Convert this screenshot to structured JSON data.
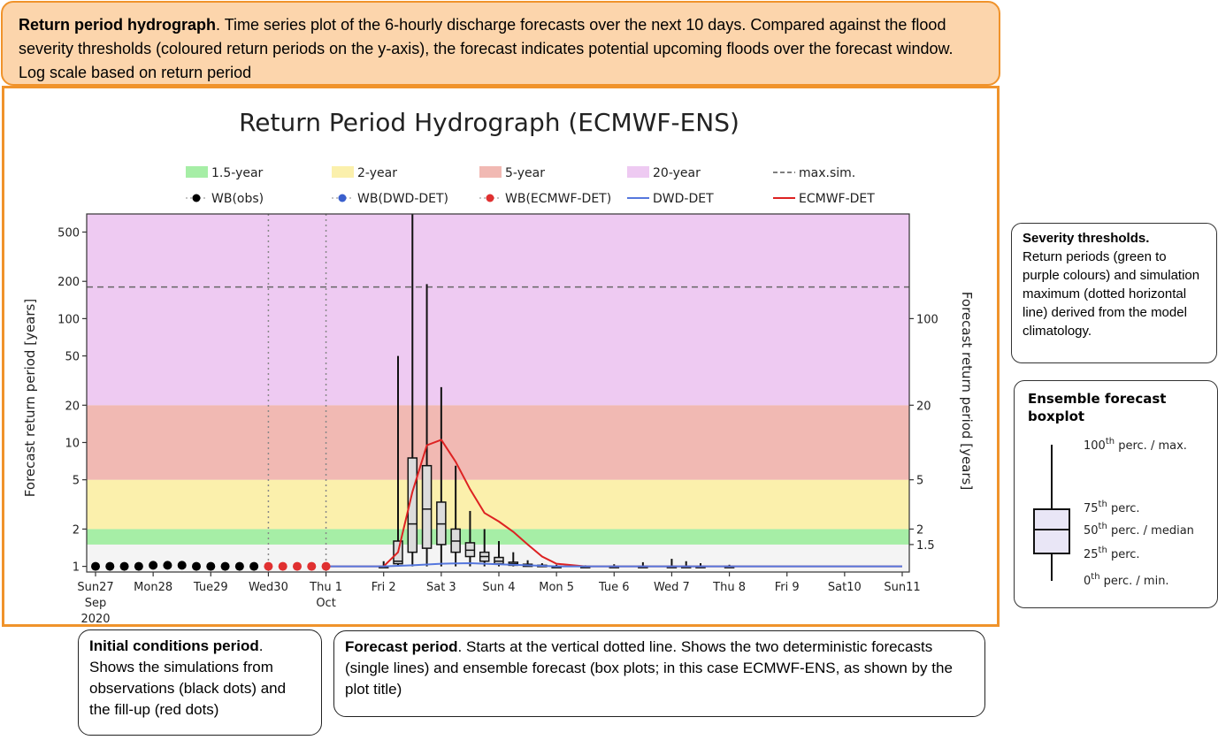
{
  "header": {
    "title": "Return period hydrograph",
    "text": ". Time series plot of the 6-hourly discharge forecasts over the next 10 days. Compared against the flood severity thresholds (coloured return periods on the y-axis), the forecast indicates potential upcoming floods over the forecast window. Log scale based on return period"
  },
  "severity_box": {
    "title": "Severity thresholds.",
    "text": "Return periods (green to purple colours) and simulation maximum (dotted horizontal line) derived from the model climatology."
  },
  "ensemble_box": {
    "title_line1": "Ensemble forecast",
    "title_line2": "boxplot",
    "labels": [
      {
        "sup": "100",
        "pre": "",
        "post": " perc. / max."
      },
      {
        "sup": "75",
        "pre": "",
        "post": " perc."
      },
      {
        "sup": "50",
        "pre": "",
        "post": " perc. / median"
      },
      {
        "sup": "25",
        "pre": "",
        "post": " perc."
      },
      {
        "sup": "0",
        "pre": "",
        "post": " perc. / min."
      }
    ],
    "ordinal": "th"
  },
  "initial_box": {
    "title": "Initial conditions period",
    "text": ". Shows the simulations from observations (black dots) and the fill-up (red dots)"
  },
  "forecast_box": {
    "title": "Forecast period",
    "text": ". Starts at the vertical dotted line. Shows the two deterministic forecasts (single lines) and ensemble forecast (box plots; in this case ECMWF-ENS, as shown by the plot title)"
  },
  "chart_data": {
    "type": "line",
    "title": "Return Period Hydrograph (ECMWF-ENS)",
    "ylabel_left": "Forecast return period [years]",
    "ylabel_right": "Forecast return period [years]",
    "y_scale": "log",
    "ylim": [
      0.9,
      700
    ],
    "y_ticks_left": [
      "1",
      "2",
      "5",
      "10",
      "20",
      "50",
      "100",
      "200",
      "500"
    ],
    "y_ticks_right": [
      "1.5",
      "2",
      "5",
      "20",
      "100"
    ],
    "xlim": [
      0,
      14
    ],
    "x_ticks": [
      {
        "x": 0,
        "lines": [
          "Sun27",
          "Sep",
          "2020"
        ]
      },
      {
        "x": 1,
        "lines": [
          "Mon28"
        ]
      },
      {
        "x": 2,
        "lines": [
          "Tue29"
        ]
      },
      {
        "x": 3,
        "lines": [
          "Wed30"
        ]
      },
      {
        "x": 4,
        "lines": [
          "Thu 1",
          "Oct"
        ]
      },
      {
        "x": 5,
        "lines": [
          "Fri 2"
        ]
      },
      {
        "x": 6,
        "lines": [
          "Sat 3"
        ]
      },
      {
        "x": 7,
        "lines": [
          "Sun 4"
        ]
      },
      {
        "x": 8,
        "lines": [
          "Mon 5"
        ]
      },
      {
        "x": 9,
        "lines": [
          "Tue 6"
        ]
      },
      {
        "x": 10,
        "lines": [
          "Wed 7"
        ]
      },
      {
        "x": 11,
        "lines": [
          "Thu 8"
        ]
      },
      {
        "x": 12,
        "lines": [
          "Fri 9"
        ]
      },
      {
        "x": 13,
        "lines": [
          "Sat10"
        ]
      },
      {
        "x": 14,
        "lines": [
          "Sun11"
        ]
      }
    ],
    "bands": [
      {
        "name": "1.5-year",
        "from": 1.5,
        "to": 2,
        "color": "#a6eea6"
      },
      {
        "name": "2-year",
        "from": 2,
        "to": 5,
        "color": "#fbf0ac"
      },
      {
        "name": "5-year",
        "from": 5,
        "to": 20,
        "color": "#f1b9b3"
      },
      {
        "name": "20-year",
        "from": 20,
        "to": 700,
        "color": "#eecaf2"
      }
    ],
    "max_sim": 180,
    "vlines": [
      3,
      4
    ],
    "legend": [
      {
        "label": "1.5-year",
        "kind": "patch",
        "color": "#a6eea6"
      },
      {
        "label": "2-year",
        "kind": "patch",
        "color": "#fbf0ac"
      },
      {
        "label": "5-year",
        "kind": "patch",
        "color": "#f1b9b3"
      },
      {
        "label": "20-year",
        "kind": "patch",
        "color": "#eecaf2"
      },
      {
        "label": "max.sim.",
        "kind": "dash",
        "color": "#555555"
      },
      {
        "label": "WB(obs)",
        "kind": "dot",
        "color": "#000000"
      },
      {
        "label": "WB(DWD-DET)",
        "kind": "dot",
        "color": "#3a5fcd"
      },
      {
        "label": "WB(ECMWF-DET)",
        "kind": "dot",
        "color": "#e03030"
      },
      {
        "label": "DWD-DET",
        "kind": "line",
        "color": "#5577dd"
      },
      {
        "label": "ECMWF-DET",
        "kind": "line",
        "color": "#dd2222"
      }
    ],
    "series": [
      {
        "name": "WB(obs)",
        "kind": "dots",
        "color": "#000000",
        "x": [
          0,
          0.25,
          0.5,
          0.75,
          1,
          1.25,
          1.5,
          1.75,
          2,
          2.25,
          2.5,
          2.75
        ],
        "y": [
          1.0,
          1.0,
          1.0,
          1.0,
          1.02,
          1.02,
          1.02,
          1.0,
          1.0,
          1.0,
          1.0,
          1.0
        ]
      },
      {
        "name": "WB(ECMWF-DET)",
        "kind": "dots",
        "color": "#e03030",
        "x": [
          3,
          3.25,
          3.5,
          3.75,
          4
        ],
        "y": [
          1.0,
          1.0,
          1.0,
          1.0,
          1.0
        ]
      },
      {
        "name": "ECMWF-DET",
        "kind": "line",
        "color": "#dd2222",
        "x": [
          4,
          5,
          5.25,
          5.5,
          5.75,
          6,
          6.25,
          6.5,
          6.75,
          7,
          7.25,
          7.5,
          7.75,
          8,
          8.5,
          9,
          10,
          11,
          12,
          13,
          14
        ],
        "y": [
          1.0,
          1.0,
          1.3,
          4,
          9.5,
          10.5,
          7,
          4.2,
          2.7,
          2.3,
          1.9,
          1.5,
          1.2,
          1.05,
          1.0,
          1.0,
          1.0,
          1.0,
          1.0,
          1.0,
          1.0
        ]
      },
      {
        "name": "DWD-DET",
        "kind": "line",
        "color": "#5577dd",
        "x": [
          4,
          5,
          5.5,
          6,
          6.5,
          7,
          7.5,
          8,
          9,
          14
        ],
        "y": [
          1.0,
          1.0,
          1.02,
          1.05,
          1.06,
          1.04,
          1.02,
          1.0,
          1.0,
          1.0
        ]
      }
    ],
    "boxplots": [
      {
        "x": 5.0,
        "min": 1.0,
        "q1": 1.0,
        "median": 1.0,
        "q3": 1.0,
        "max": 1.1
      },
      {
        "x": 5.25,
        "min": 1.0,
        "q1": 1.05,
        "median": 1.1,
        "q3": 1.6,
        "max": 50
      },
      {
        "x": 5.5,
        "min": 1.0,
        "q1": 1.3,
        "median": 2.2,
        "q3": 7.5,
        "max": 700
      },
      {
        "x": 5.75,
        "min": 1.0,
        "q1": 1.4,
        "median": 2.9,
        "q3": 6.5,
        "max": 190
      },
      {
        "x": 6.0,
        "min": 1.0,
        "q1": 1.5,
        "median": 2.2,
        "q3": 3.3,
        "max": 28
      },
      {
        "x": 6.25,
        "min": 1.0,
        "q1": 1.3,
        "median": 1.6,
        "q3": 2.0,
        "max": 6.5
      },
      {
        "x": 6.5,
        "min": 1.0,
        "q1": 1.2,
        "median": 1.35,
        "q3": 1.55,
        "max": 2.8
      },
      {
        "x": 6.75,
        "min": 1.0,
        "q1": 1.1,
        "median": 1.2,
        "q3": 1.3,
        "max": 2.0
      },
      {
        "x": 7.0,
        "min": 1.0,
        "q1": 1.05,
        "median": 1.1,
        "q3": 1.18,
        "max": 1.6
      },
      {
        "x": 7.25,
        "min": 1.0,
        "q1": 1.02,
        "median": 1.05,
        "q3": 1.08,
        "max": 1.3
      },
      {
        "x": 7.5,
        "min": 1.0,
        "q1": 1.0,
        "median": 1.02,
        "q3": 1.04,
        "max": 1.12
      },
      {
        "x": 7.75,
        "min": 1.0,
        "q1": 1.0,
        "median": 1.0,
        "q3": 1.02,
        "max": 1.06
      },
      {
        "x": 8.0,
        "min": 1.0,
        "q1": 1.0,
        "median": 1.0,
        "q3": 1.0,
        "max": 1.03
      },
      {
        "x": 8.5,
        "min": 1.0,
        "q1": 1.0,
        "median": 1.0,
        "q3": 1.0,
        "max": 1.02
      },
      {
        "x": 9.0,
        "min": 1.0,
        "q1": 1.0,
        "median": 1.0,
        "q3": 1.0,
        "max": 1.04
      },
      {
        "x": 9.5,
        "min": 1.0,
        "q1": 1.0,
        "median": 1.0,
        "q3": 1.0,
        "max": 1.08
      },
      {
        "x": 10.0,
        "min": 1.0,
        "q1": 1.0,
        "median": 1.0,
        "q3": 1.0,
        "max": 1.15
      },
      {
        "x": 10.25,
        "min": 1.0,
        "q1": 1.0,
        "median": 1.0,
        "q3": 1.0,
        "max": 1.1
      },
      {
        "x": 10.5,
        "min": 1.0,
        "q1": 1.0,
        "median": 1.0,
        "q3": 1.0,
        "max": 1.06
      },
      {
        "x": 11.0,
        "min": 1.0,
        "q1": 1.0,
        "median": 1.0,
        "q3": 1.0,
        "max": 1.03
      }
    ]
  }
}
